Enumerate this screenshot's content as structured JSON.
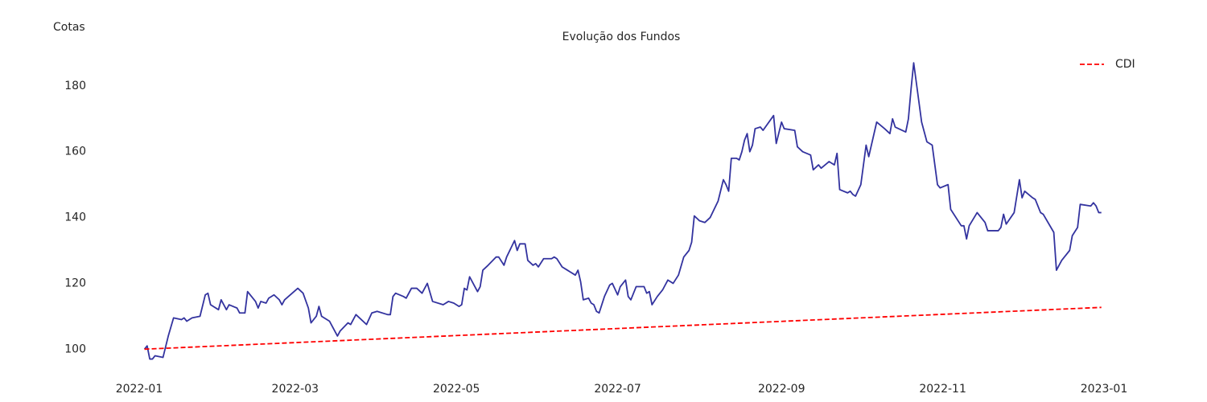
{
  "chart_data": {
    "type": "line",
    "title": "Evolução dos Fundos",
    "y_label": "Cotas",
    "xlim": [
      -7,
      372
    ],
    "ylim": [
      92.5,
      189
    ],
    "xticks": [
      {
        "value": 0,
        "label": "2022-01"
      },
      {
        "value": 59,
        "label": "2022-03"
      },
      {
        "value": 120,
        "label": "2022-05"
      },
      {
        "value": 181,
        "label": "2022-07"
      },
      {
        "value": 243,
        "label": "2022-09"
      },
      {
        "value": 304,
        "label": "2022-11"
      },
      {
        "value": 365,
        "label": "2023-01"
      }
    ],
    "yticks": [
      100,
      120,
      140,
      160,
      180
    ],
    "grid": false,
    "legend": "upper right",
    "series": [
      {
        "color": "#33339f",
        "dash": false,
        "x": [
          2,
          3,
          4,
          5,
          6,
          9,
          11,
          13,
          16,
          17,
          18,
          20,
          23,
          25,
          26,
          27,
          30,
          31,
          33,
          34,
          37,
          38,
          40,
          41,
          44,
          45,
          46,
          48,
          49,
          51,
          53,
          54,
          55,
          60,
          62,
          64,
          65,
          67,
          68,
          69,
          72,
          73,
          75,
          76,
          79,
          80,
          82,
          84,
          86,
          88,
          90,
          94,
          95,
          96,
          97,
          100,
          101,
          103,
          105,
          107,
          109,
          111,
          115,
          117,
          119,
          121,
          122,
          123,
          124,
          125,
          127,
          128,
          129,
          130,
          132,
          135,
          136,
          138,
          139,
          142,
          143,
          144,
          146,
          147,
          149,
          150,
          151,
          153,
          156,
          157,
          158,
          160,
          162,
          163,
          165,
          166,
          167,
          168,
          170,
          171,
          172,
          173,
          174,
          176,
          178,
          179,
          181,
          182,
          184,
          185,
          186,
          188,
          191,
          192,
          193,
          194,
          196,
          198,
          200,
          201,
          202,
          204,
          206,
          208,
          209,
          210,
          212,
          214,
          216,
          219,
          221,
          222,
          223,
          224,
          226,
          227,
          228,
          229,
          230,
          231,
          232,
          233,
          235,
          236,
          240,
          241,
          243,
          244,
          248,
          249,
          251,
          254,
          255,
          257,
          258,
          261,
          263,
          264,
          265,
          268,
          269,
          270,
          271,
          273,
          275,
          276,
          279,
          282,
          284,
          285,
          286,
          290,
          291,
          292,
          293,
          295,
          296,
          298,
          300,
          302,
          303,
          306,
          307,
          311,
          312,
          313,
          314,
          317,
          320,
          321,
          325,
          326,
          327,
          328,
          331,
          333,
          334,
          335,
          338,
          339,
          341,
          342,
          346,
          347,
          349,
          350,
          352,
          353,
          355,
          356,
          360,
          361,
          362,
          363,
          364
        ],
        "values": [
          100,
          101,
          97,
          97,
          98,
          97.5,
          104,
          109.5,
          109,
          109.5,
          108.5,
          109.5,
          110,
          116.5,
          117,
          113.5,
          112,
          115,
          112,
          113.5,
          112.5,
          111,
          111,
          117.5,
          114.5,
          112.5,
          114.5,
          114,
          115.5,
          116.5,
          115,
          113.5,
          115,
          118.5,
          117,
          112.5,
          108,
          110,
          113,
          110,
          108.5,
          107,
          104,
          105.5,
          108,
          107.5,
          110.5,
          109,
          107.5,
          111,
          111.5,
          110.5,
          110.5,
          116,
          117,
          116,
          115.5,
          118.5,
          118.5,
          117,
          120,
          114.5,
          113.5,
          114.5,
          114,
          113,
          113.5,
          118.5,
          118,
          122,
          119,
          117.5,
          119,
          124,
          125.5,
          128,
          128,
          125.5,
          128,
          133,
          130,
          132,
          132,
          127,
          125.5,
          126,
          125,
          127.5,
          127.5,
          128,
          127.5,
          125,
          124,
          123.5,
          122.5,
          124,
          120.5,
          115,
          115.5,
          114,
          113.5,
          111.5,
          111,
          116,
          119.5,
          120,
          116.5,
          119,
          121,
          116,
          115,
          119,
          119,
          117,
          117.5,
          113.5,
          116,
          118,
          121,
          120.5,
          120,
          122.5,
          128,
          130,
          132.5,
          140.5,
          139,
          138.5,
          140,
          145,
          151.5,
          150,
          148,
          158,
          158,
          157.5,
          160,
          163.5,
          165.5,
          160,
          162,
          167,
          167.5,
          166.5,
          171,
          162.5,
          169,
          167,
          166.5,
          161.5,
          160,
          159,
          154.5,
          156,
          155,
          157,
          156,
          159.5,
          148.5,
          147.5,
          148,
          147,
          146.5,
          150,
          162,
          158.5,
          169,
          167,
          165.5,
          170,
          167.5,
          166,
          170,
          179,
          187,
          175,
          169,
          163,
          162,
          150,
          149,
          150,
          142.5,
          137.5,
          137.5,
          133.5,
          137.5,
          141.5,
          138.5,
          136,
          136,
          137,
          141,
          138,
          141.5,
          151.5,
          146,
          148,
          146,
          145.5,
          141.5,
          141,
          135.5,
          124,
          127,
          128,
          130,
          134.5,
          137,
          144,
          143.5,
          144.5,
          143.5,
          141.5,
          141.5
        ]
      },
      {
        "name": "CDI",
        "color": "#ff0000",
        "dash": true,
        "x": [
          2,
          364
        ],
        "values": [
          100,
          112.7
        ]
      }
    ]
  }
}
